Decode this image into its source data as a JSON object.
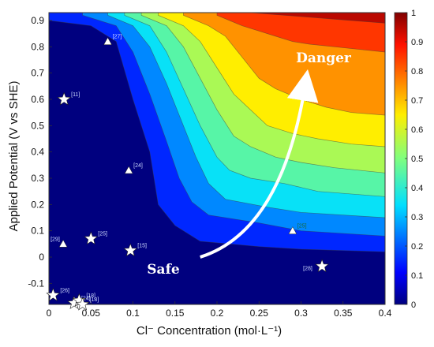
{
  "chart_data": {
    "type": "heatmap",
    "title": "",
    "xlabel": "Cl⁻ Concentration  (mol·L⁻¹)",
    "ylabel": "Applied Potential (V vs SHE)",
    "xlim": [
      0,
      0.4
    ],
    "ylim": [
      -0.18,
      0.93
    ],
    "x_ticks": [
      "0",
      "0.05",
      "0.1",
      "0.15",
      "0.2",
      "0.25",
      "0.3",
      "0.35",
      "0.4"
    ],
    "y_ticks": [
      "-0.1",
      "0",
      "0.1",
      "0.2",
      "0.3",
      "0.4",
      "0.5",
      "0.6",
      "0.7",
      "0.8",
      "0.9"
    ],
    "colorbar": {
      "min": 0,
      "max": 1,
      "ticks": [
        "0",
        "0.1",
        "0.2",
        "0.3",
        "0.4",
        "0.5",
        "0.6",
        "0.7",
        "0.8",
        "0.9",
        "1"
      ],
      "colormap": "jet"
    },
    "contour_levels": [
      {
        "level": 0.1,
        "x": [
          0.0,
          0.05,
          0.08,
          0.1,
          0.12,
          0.13,
          0.15,
          0.18,
          0.25,
          0.3,
          0.4
        ],
        "y": [
          0.9,
          0.88,
          0.82,
          0.6,
          0.4,
          0.2,
          0.12,
          0.06,
          0.04,
          0.03,
          0.02
        ]
      },
      {
        "level": 0.2,
        "x": [
          0.04,
          0.08,
          0.1,
          0.12,
          0.14,
          0.155,
          0.17,
          0.19,
          0.25,
          0.3,
          0.4
        ],
        "y": [
          0.92,
          0.88,
          0.78,
          0.62,
          0.44,
          0.3,
          0.21,
          0.16,
          0.13,
          0.1,
          0.08
        ]
      },
      {
        "level": 0.3,
        "x": [
          0.07,
          0.1,
          0.12,
          0.14,
          0.16,
          0.175,
          0.19,
          0.21,
          0.26,
          0.3,
          0.4
        ],
        "y": [
          0.92,
          0.88,
          0.8,
          0.66,
          0.5,
          0.38,
          0.28,
          0.22,
          0.19,
          0.17,
          0.15
        ]
      },
      {
        "level": 0.4,
        "x": [
          0.09,
          0.12,
          0.14,
          0.16,
          0.18,
          0.2,
          0.215,
          0.24,
          0.28,
          0.32,
          0.4
        ],
        "y": [
          0.92,
          0.88,
          0.78,
          0.64,
          0.5,
          0.38,
          0.33,
          0.3,
          0.28,
          0.25,
          0.23
        ]
      },
      {
        "level": 0.5,
        "x": [
          0.11,
          0.14,
          0.16,
          0.18,
          0.2,
          0.22,
          0.24,
          0.27,
          0.3,
          0.34,
          0.4
        ],
        "y": [
          0.92,
          0.88,
          0.8,
          0.68,
          0.56,
          0.46,
          0.42,
          0.38,
          0.36,
          0.34,
          0.32
        ]
      },
      {
        "level": 0.6,
        "x": [
          0.13,
          0.16,
          0.18,
          0.2,
          0.22,
          0.24,
          0.26,
          0.29,
          0.32,
          0.36,
          0.4
        ],
        "y": [
          0.92,
          0.88,
          0.82,
          0.72,
          0.62,
          0.56,
          0.5,
          0.47,
          0.45,
          0.43,
          0.42
        ]
      },
      {
        "level": 0.7,
        "x": [
          0.16,
          0.19,
          0.21,
          0.23,
          0.25,
          0.27,
          0.3,
          0.33,
          0.36,
          0.4
        ],
        "y": [
          0.92,
          0.88,
          0.84,
          0.76,
          0.68,
          0.64,
          0.6,
          0.57,
          0.55,
          0.54
        ]
      },
      {
        "level": 0.8,
        "x": [
          0.2,
          0.23,
          0.25,
          0.27,
          0.29,
          0.31,
          0.34,
          0.37,
          0.4
        ],
        "y": [
          0.92,
          0.88,
          0.86,
          0.84,
          0.82,
          0.81,
          0.8,
          0.79,
          0.78
        ]
      },
      {
        "level": 0.9,
        "x": [
          0.24,
          0.28,
          0.32,
          0.36,
          0.4
        ],
        "y": [
          0.93,
          0.92,
          0.91,
          0.9,
          0.89
        ]
      }
    ],
    "data_points": [
      {
        "ref": "[27]",
        "marker": "triangle",
        "x": 0.07,
        "y": 0.82
      },
      {
        "ref": "[11]",
        "marker": "star",
        "x": 0.018,
        "y": 0.6
      },
      {
        "ref": "[24]",
        "marker": "triangle",
        "x": 0.095,
        "y": 0.33
      },
      {
        "ref": "[25]",
        "marker": "star",
        "x": 0.05,
        "y": 0.07
      },
      {
        "ref": "[29]",
        "marker": "triangle",
        "x": 0.017,
        "y": 0.05
      },
      {
        "ref": "[15]",
        "marker": "star",
        "x": 0.097,
        "y": 0.025
      },
      {
        "ref": "[25]",
        "marker": "triangle",
        "x": 0.29,
        "y": 0.1
      },
      {
        "ref": "[28]",
        "marker": "star",
        "x": 0.325,
        "y": -0.035
      },
      {
        "ref": "[26]",
        "marker": "star",
        "x": 0.005,
        "y": -0.145
      },
      {
        "ref": "[24]",
        "marker": "star",
        "x": 0.03,
        "y": -0.175
      },
      {
        "ref": "[18]",
        "marker": "star",
        "x": 0.036,
        "y": -0.165
      },
      {
        "ref": "[18]",
        "marker": "star",
        "x": 0.04,
        "y": -0.18
      }
    ],
    "annotations": {
      "danger": "Danger",
      "safe": "Safe",
      "arrow": {
        "from": [
          0.18,
          0.0
        ],
        "to": [
          0.305,
          0.655
        ]
      }
    },
    "colors": {
      "region_text": "#ffffff",
      "star_fill": "#ffffff",
      "ref_text_dark": "#d0dcff",
      "ref_text_light": "#1a6a3a"
    }
  }
}
